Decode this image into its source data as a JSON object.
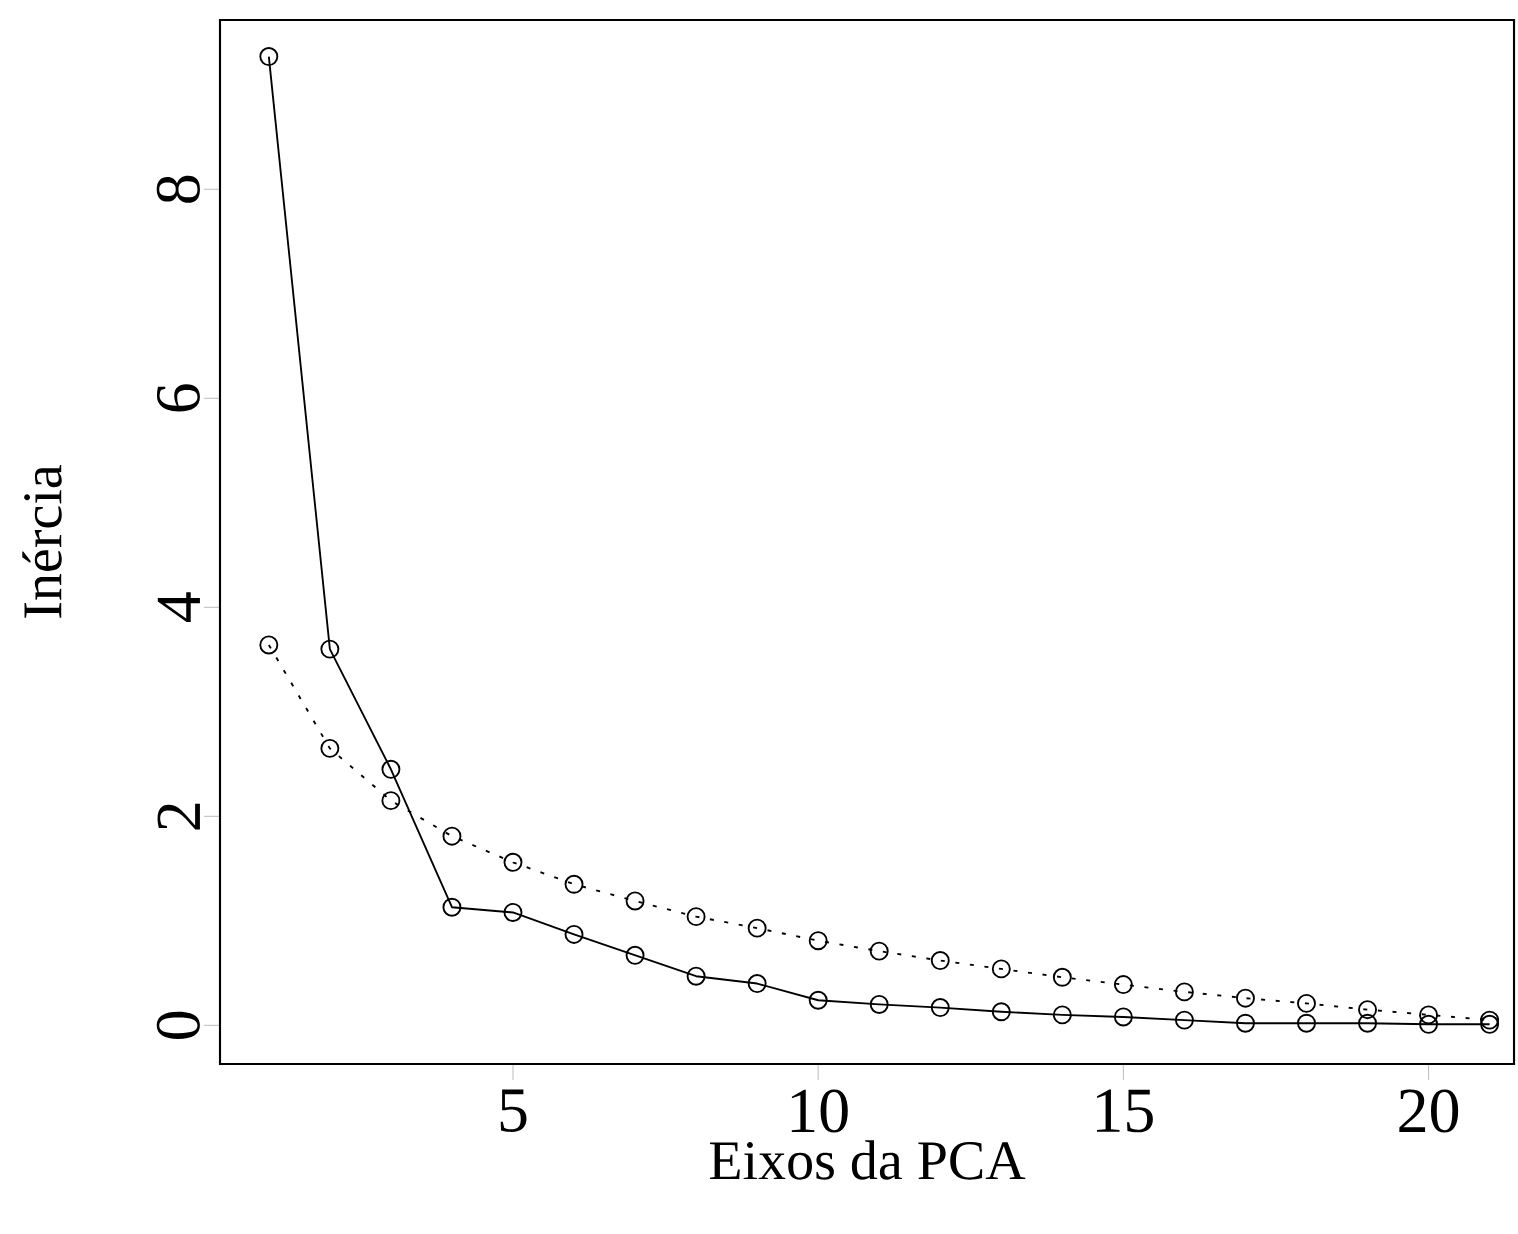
{
  "chart_data": {
    "type": "line",
    "xlabel": "Eixos da PCA",
    "ylabel": "Inércia",
    "marker": "circle",
    "xlim": [
      0.2,
      21.4
    ],
    "ylim": [
      -0.37,
      9.62
    ],
    "xticks": [
      5,
      10,
      15,
      20
    ],
    "yticks": [
      0,
      2,
      4,
      6,
      8
    ],
    "series": [
      {
        "color": "#000000",
        "line_style": "solid",
        "x": [
          1,
          2,
          3,
          4,
          5,
          6,
          7,
          8,
          9,
          10,
          11,
          12,
          13,
          14,
          15,
          16,
          17,
          18,
          19,
          20,
          21
        ],
        "values": [
          9.27,
          3.6,
          2.45,
          1.13,
          1.08,
          0.87,
          0.67,
          0.47,
          0.4,
          0.24,
          0.2,
          0.17,
          0.13,
          0.1,
          0.08,
          0.05,
          0.02,
          0.02,
          0.02,
          0.01,
          0.01
        ]
      },
      {
        "color": "#000000",
        "line_style": "dotted",
        "x": [
          1,
          2,
          3,
          4,
          5,
          6,
          7,
          8,
          9,
          10,
          11,
          12,
          13,
          14,
          15,
          16,
          17,
          18,
          19,
          20,
          21
        ],
        "values": [
          3.64,
          2.65,
          2.15,
          1.81,
          1.56,
          1.35,
          1.19,
          1.04,
          0.93,
          0.81,
          0.71,
          0.62,
          0.54,
          0.46,
          0.39,
          0.32,
          0.26,
          0.21,
          0.15,
          0.1,
          0.05
        ]
      }
    ]
  }
}
